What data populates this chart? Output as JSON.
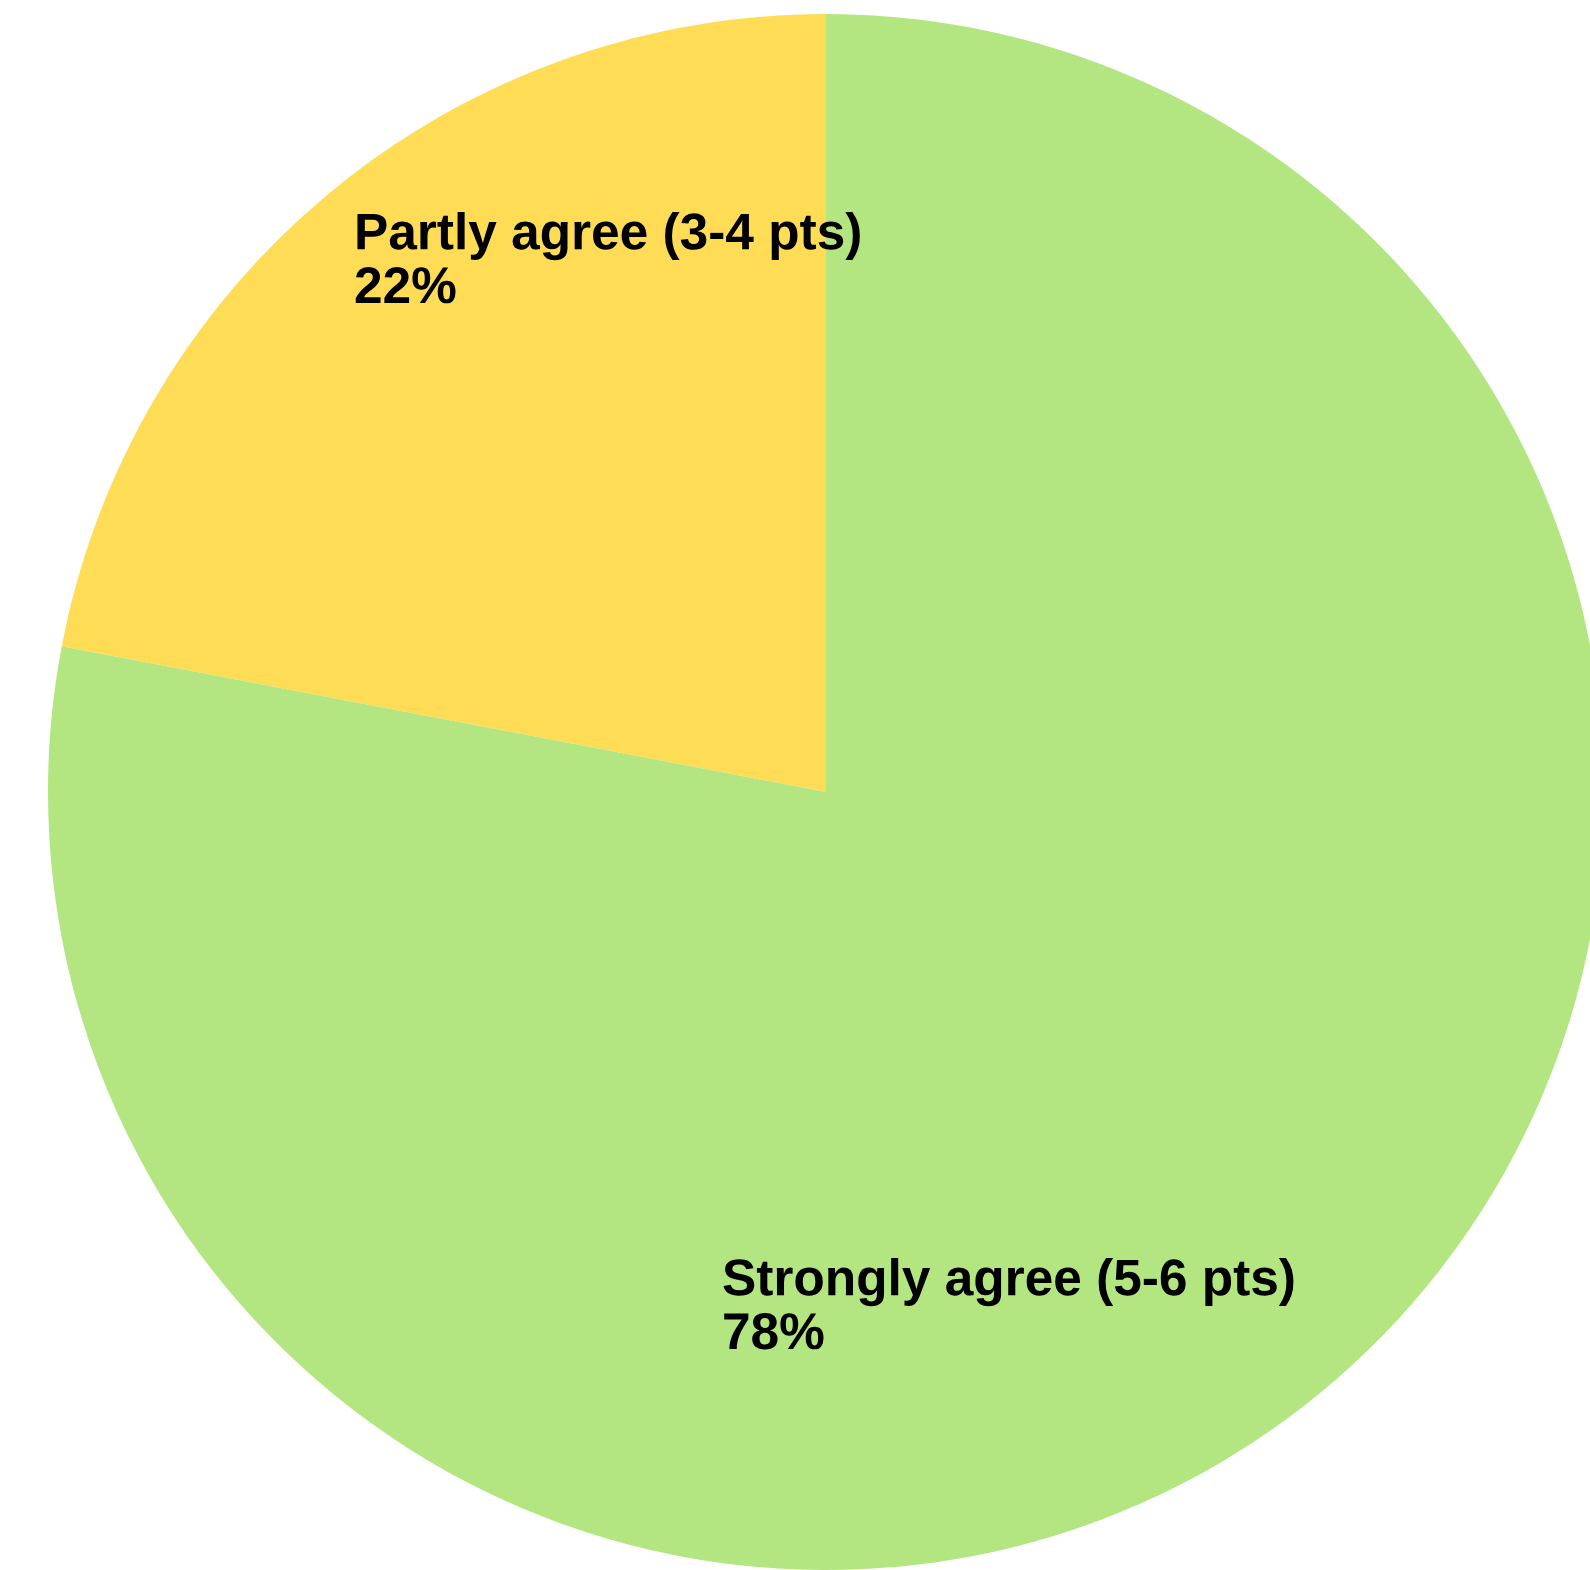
{
  "chart_data": {
    "type": "pie",
    "categories": [
      "Partly agree (3-4 pts)",
      "Strongly agree (5-6 pts)"
    ],
    "values": [
      22,
      78
    ],
    "colors": [
      "#ffdc55",
      "#b3e580"
    ],
    "value_labels": [
      "22%",
      "78%"
    ]
  }
}
